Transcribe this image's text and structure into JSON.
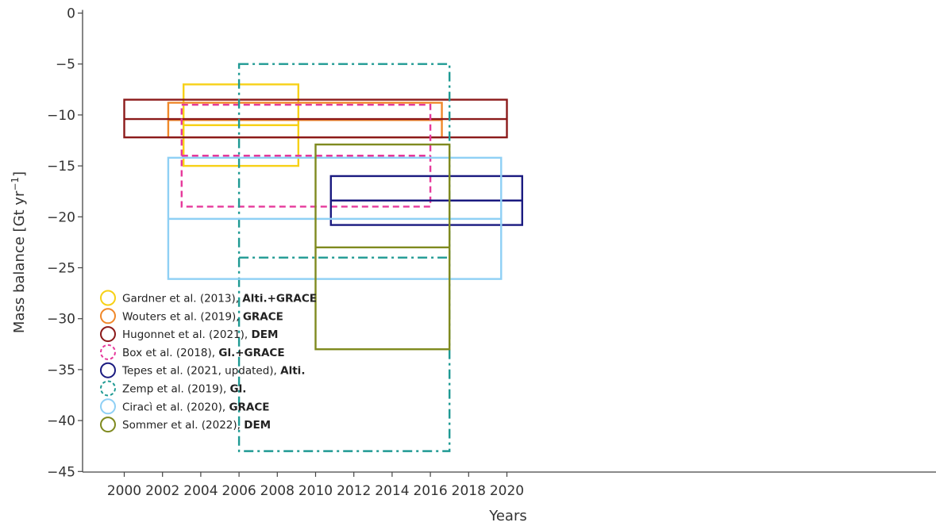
{
  "chart_data": {
    "type": "box-ranges",
    "xlabel": "Years",
    "ylabel": "Mass balance [Gt yr",
    "ylabel_sup": "−1",
    "ylabel_suffix": "]",
    "xlim": [
      1999,
      2021
    ],
    "ylim": [
      -45,
      0
    ],
    "xticks": [
      2000,
      2002,
      2004,
      2006,
      2008,
      2010,
      2012,
      2014,
      2016,
      2018,
      2020
    ],
    "yticks": [
      0,
      -5,
      -10,
      -15,
      -20,
      -25,
      -30,
      -35,
      -40,
      -45
    ],
    "ytick_labels": [
      "0",
      "−5",
      "−10",
      "−15",
      "−20",
      "−25",
      "−30",
      "−35",
      "−40",
      "−45"
    ],
    "legend_position": "bottom-left",
    "series": [
      {
        "name": "Gardner et al. (2013), ",
        "method": "Alti.+GRACE",
        "color": "#f7d117",
        "dash": "solid",
        "x": [
          2003.1,
          2009.1
        ],
        "y_top": -7,
        "y_bottom": -15,
        "y_mid": -11
      },
      {
        "name": "Wouters et al. (2019), ",
        "method": "GRACE",
        "color": "#f0882a",
        "dash": "solid",
        "x": [
          2002.3,
          2016.6
        ],
        "y_top": -8.8,
        "y_bottom": -12.2,
        "y_mid": -10.5
      },
      {
        "name": "Hugonnet et al. (2021), ",
        "method": "DEM",
        "color": "#8b1a1a",
        "dash": "solid",
        "x": [
          2000,
          2020
        ],
        "y_top": -8.5,
        "y_bottom": -12.2,
        "y_mid": -10.4
      },
      {
        "name": "Box et al. (2018), ",
        "method": "Gl.+GRACE",
        "color": "#e6399b",
        "dash": "dashed",
        "x": [
          2003,
          2016
        ],
        "y_top": -9,
        "y_bottom": -19,
        "y_mid": -14
      },
      {
        "name": "Tepes et al. (2021, updated), ",
        "method": "Alti.",
        "color": "#1a1a80",
        "dash": "solid",
        "x": [
          2010.8,
          2020.8
        ],
        "y_top": -16,
        "y_bottom": -20.8,
        "y_mid": -18.4
      },
      {
        "name": "Zemp et al. (2019), ",
        "method": "Gl.",
        "color": "#1f9a93",
        "dash": "dashdot",
        "x": [
          2006,
          2017
        ],
        "y_top": -5,
        "y_bottom": -43,
        "y_mid": -24
      },
      {
        "name": "Ciracì et al. (2020), ",
        "method": "GRACE",
        "color": "#8fd0f5",
        "dash": "solid",
        "x": [
          2002.3,
          2019.7
        ],
        "y_top": -14.2,
        "y_bottom": -26.1,
        "y_mid": -20.2
      },
      {
        "name": "Sommer et al. (2022), ",
        "method": "DEM",
        "color": "#7f8a1f",
        "dash": "solid",
        "x": [
          2010,
          2017
        ],
        "y_top": -12.9,
        "y_bottom": -33,
        "y_mid": -23
      }
    ]
  }
}
